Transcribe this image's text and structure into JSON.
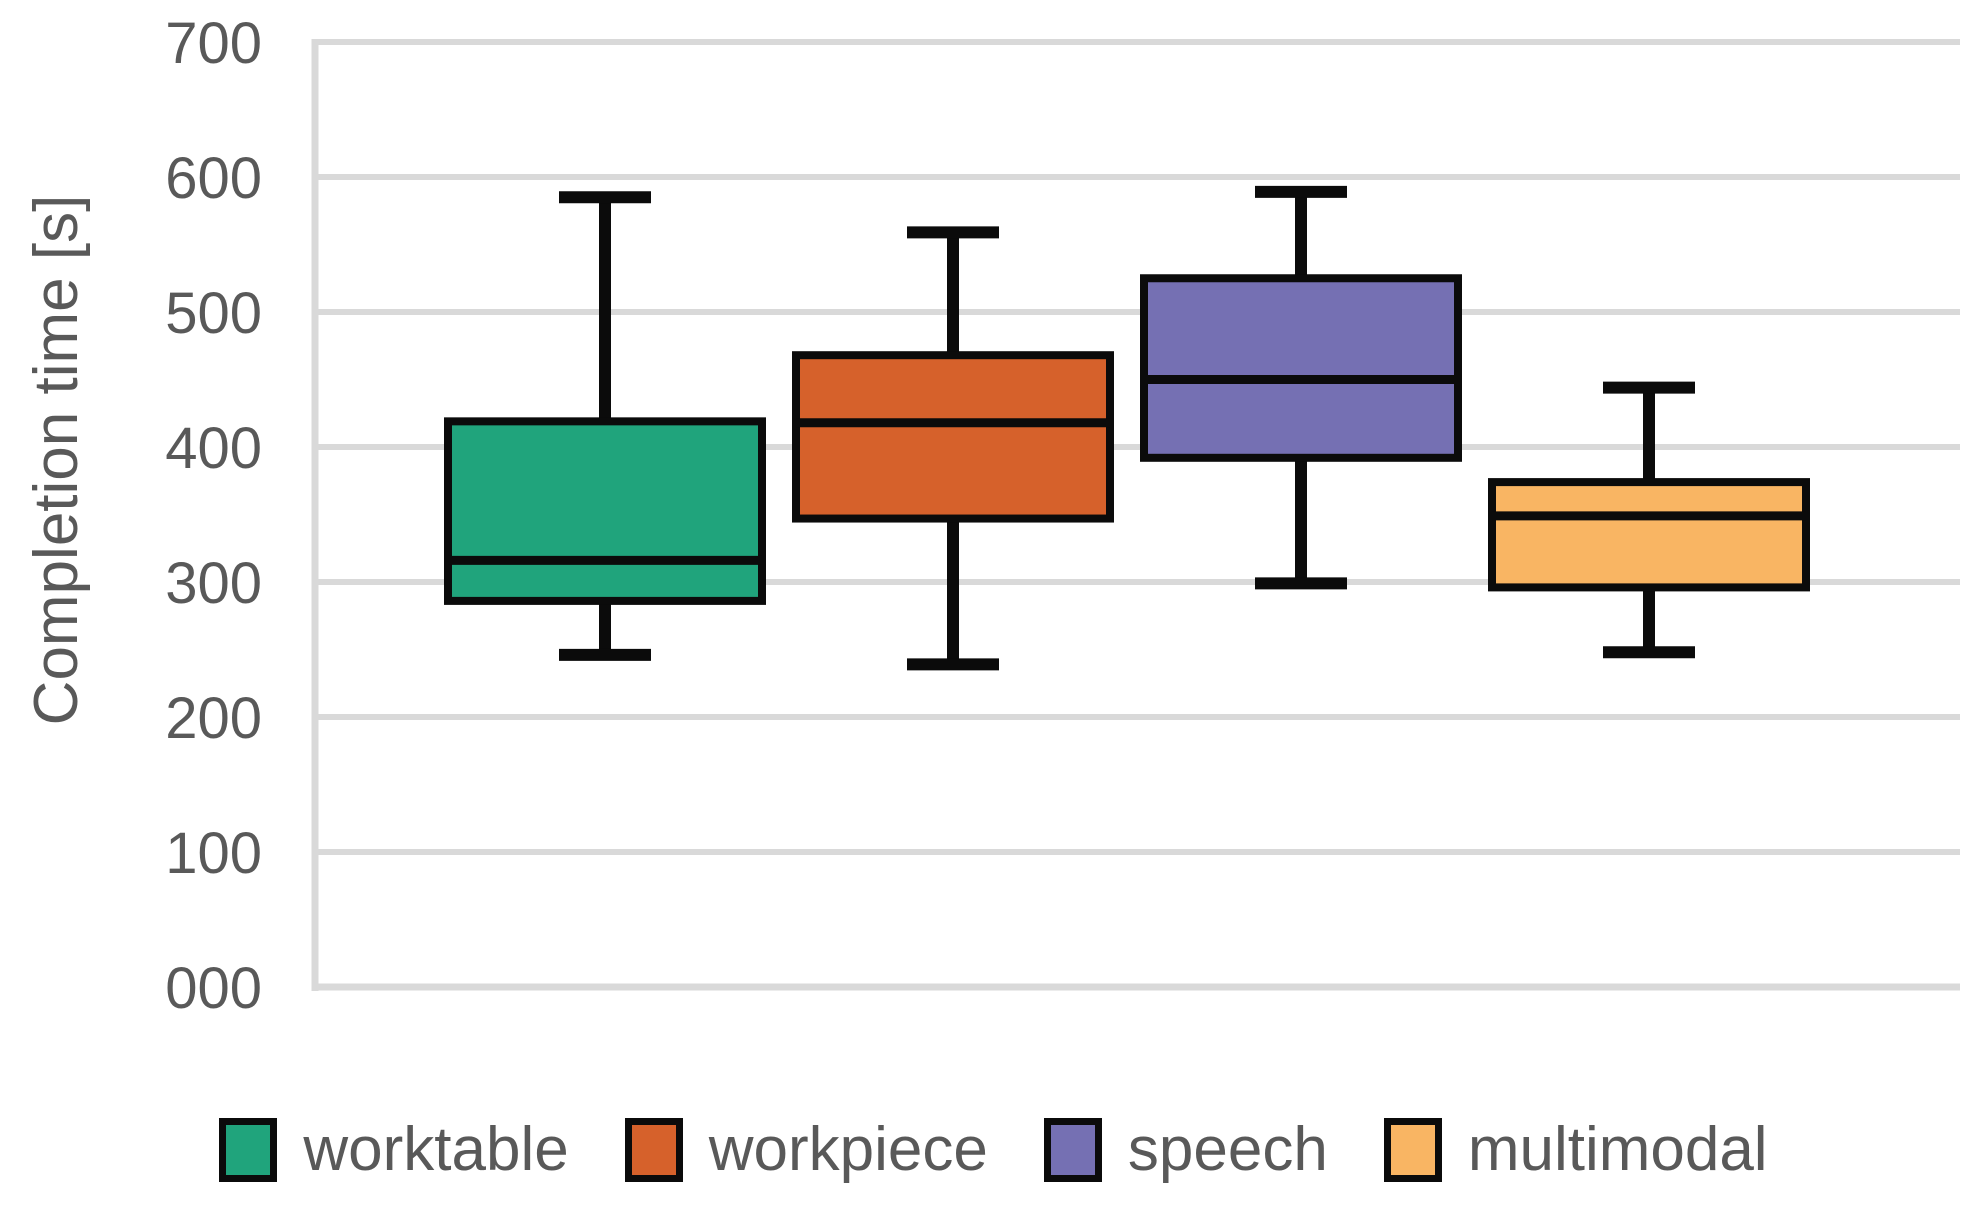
{
  "figure": {
    "background": "#FFFFFF"
  },
  "chart_data": {
    "type": "boxplot",
    "title": "",
    "xlabel": "",
    "ylabel": "Completion time [s]",
    "ylim": [
      0,
      700
    ],
    "y_tick_step": 100,
    "y_ticks": [
      "000",
      "100",
      "200",
      "300",
      "400",
      "500",
      "600",
      "700"
    ],
    "grid": true,
    "legend_position": "bottom",
    "categories": [
      "worktable",
      "workpiece",
      "speech",
      "multimodal"
    ],
    "series": [
      {
        "name": "worktable",
        "color": "#20A47C",
        "min": 246,
        "q1": 286,
        "median": 316,
        "q3": 419,
        "max": 585
      },
      {
        "name": "workpiece",
        "color": "#D6612B",
        "min": 239,
        "q1": 347,
        "median": 418,
        "q3": 468,
        "max": 559
      },
      {
        "name": "speech",
        "color": "#7570B3",
        "min": 299,
        "q1": 392,
        "median": 450,
        "q3": 525,
        "max": 589
      },
      {
        "name": "multimodal",
        "color": "#F9B563",
        "min": 248,
        "q1": 296,
        "median": 349,
        "q3": 374,
        "max": 444
      }
    ],
    "colors": {
      "grid": "#D9D9D9",
      "axis_text": "#595959",
      "box_border": "#0B0B0B"
    }
  }
}
